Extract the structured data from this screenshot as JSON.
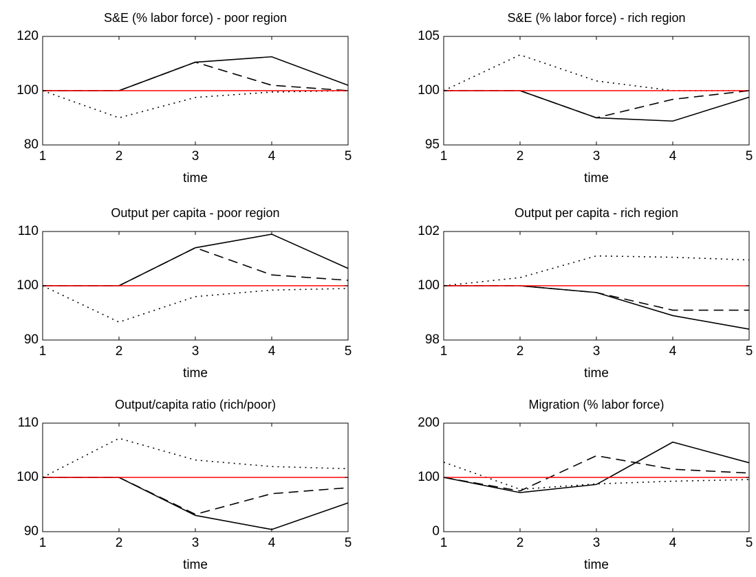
{
  "chart_data": [
    {
      "type": "line",
      "title": "S&E (% labor force) - poor region",
      "xlabel": "time",
      "x": [
        1,
        2,
        3,
        4,
        5
      ],
      "xlim": [
        1,
        5
      ],
      "xticks": [
        1,
        2,
        3,
        4,
        5
      ],
      "ylim": [
        80,
        120
      ],
      "yticks": [
        80,
        100,
        120
      ],
      "series": [
        {
          "color": "#000000",
          "dash": "solid",
          "values": [
            100,
            100,
            110.5,
            112.5,
            102
          ]
        },
        {
          "color": "#000000",
          "dash": "dashed",
          "values": [
            100,
            100,
            110.5,
            102,
            100
          ]
        },
        {
          "color": "#000000",
          "dash": "dotted",
          "values": [
            100,
            90,
            97.5,
            99.5,
            100
          ]
        },
        {
          "color": "#ff0000",
          "dash": "solid",
          "values": [
            100,
            100,
            100,
            100,
            100
          ]
        }
      ]
    },
    {
      "type": "line",
      "title": "S&E (% labor force) - rich region",
      "xlabel": "time",
      "x": [
        1,
        2,
        3,
        4,
        5
      ],
      "xlim": [
        1,
        5
      ],
      "xticks": [
        1,
        2,
        3,
        4,
        5
      ],
      "ylim": [
        95,
        105
      ],
      "yticks": [
        95,
        100,
        105
      ],
      "series": [
        {
          "color": "#000000",
          "dash": "solid",
          "values": [
            100,
            100,
            97.5,
            97.2,
            99.4
          ]
        },
        {
          "color": "#000000",
          "dash": "dashed",
          "values": [
            100,
            100,
            97.5,
            99.2,
            100
          ]
        },
        {
          "color": "#000000",
          "dash": "dotted",
          "values": [
            100,
            103.3,
            100.9,
            100,
            100
          ]
        },
        {
          "color": "#ff0000",
          "dash": "solid",
          "values": [
            100,
            100,
            100,
            100,
            100
          ]
        }
      ]
    },
    {
      "type": "line",
      "title": "Output per capita - poor region",
      "xlabel": "time",
      "x": [
        1,
        2,
        3,
        4,
        5
      ],
      "xlim": [
        1,
        5
      ],
      "xticks": [
        1,
        2,
        3,
        4,
        5
      ],
      "ylim": [
        90,
        110
      ],
      "yticks": [
        90,
        100,
        110
      ],
      "series": [
        {
          "color": "#000000",
          "dash": "solid",
          "values": [
            100,
            100,
            107,
            109.5,
            103.2
          ]
        },
        {
          "color": "#000000",
          "dash": "dashed",
          "values": [
            100,
            100,
            107,
            102,
            101
          ]
        },
        {
          "color": "#000000",
          "dash": "dotted",
          "values": [
            100,
            93.3,
            98,
            99.2,
            99.5
          ]
        },
        {
          "color": "#ff0000",
          "dash": "solid",
          "values": [
            100,
            100,
            100,
            100,
            100
          ]
        }
      ]
    },
    {
      "type": "line",
      "title": "Output per capita - rich region",
      "xlabel": "time",
      "x": [
        1,
        2,
        3,
        4,
        5
      ],
      "xlim": [
        1,
        5
      ],
      "xticks": [
        1,
        2,
        3,
        4,
        5
      ],
      "ylim": [
        98,
        102
      ],
      "yticks": [
        98,
        100,
        102
      ],
      "series": [
        {
          "color": "#000000",
          "dash": "solid",
          "values": [
            100,
            100,
            99.75,
            98.9,
            98.4
          ]
        },
        {
          "color": "#000000",
          "dash": "dashed",
          "values": [
            100,
            100,
            99.75,
            99.1,
            99.1
          ]
        },
        {
          "color": "#000000",
          "dash": "dotted",
          "values": [
            100,
            100.3,
            101.1,
            101.05,
            100.95
          ]
        },
        {
          "color": "#ff0000",
          "dash": "solid",
          "values": [
            100,
            100,
            100,
            100,
            100
          ]
        }
      ]
    },
    {
      "type": "line",
      "title": "Output/capita ratio (rich/poor)",
      "xlabel": "time",
      "x": [
        1,
        2,
        3,
        4,
        5
      ],
      "xlim": [
        1,
        5
      ],
      "xticks": [
        1,
        2,
        3,
        4,
        5
      ],
      "ylim": [
        90,
        110
      ],
      "yticks": [
        90,
        100,
        110
      ],
      "series": [
        {
          "color": "#000000",
          "dash": "solid",
          "values": [
            100,
            100,
            93,
            90.4,
            95.3
          ]
        },
        {
          "color": "#000000",
          "dash": "dashed",
          "values": [
            100,
            100,
            93.2,
            97,
            98.1
          ]
        },
        {
          "color": "#000000",
          "dash": "dotted",
          "values": [
            100,
            107.2,
            103.2,
            102,
            101.6
          ]
        },
        {
          "color": "#ff0000",
          "dash": "solid",
          "values": [
            100,
            100,
            100,
            100,
            100
          ]
        }
      ]
    },
    {
      "type": "line",
      "title": "Migration (% labor force)",
      "xlabel": "time",
      "x": [
        1,
        2,
        3,
        4,
        5
      ],
      "xlim": [
        1,
        5
      ],
      "xticks": [
        1,
        2,
        3,
        4,
        5
      ],
      "ylim": [
        0,
        200
      ],
      "yticks": [
        0,
        100,
        200
      ],
      "series": [
        {
          "color": "#000000",
          "dash": "solid",
          "values": [
            100,
            72,
            87,
            165,
            127
          ]
        },
        {
          "color": "#000000",
          "dash": "dashed",
          "values": [
            100,
            75,
            140,
            115,
            108
          ]
        },
        {
          "color": "#000000",
          "dash": "dotted",
          "values": [
            128,
            78,
            88,
            93,
            96
          ]
        },
        {
          "color": "#ff0000",
          "dash": "solid",
          "values": [
            100,
            100,
            100,
            100,
            100
          ]
        }
      ]
    }
  ]
}
